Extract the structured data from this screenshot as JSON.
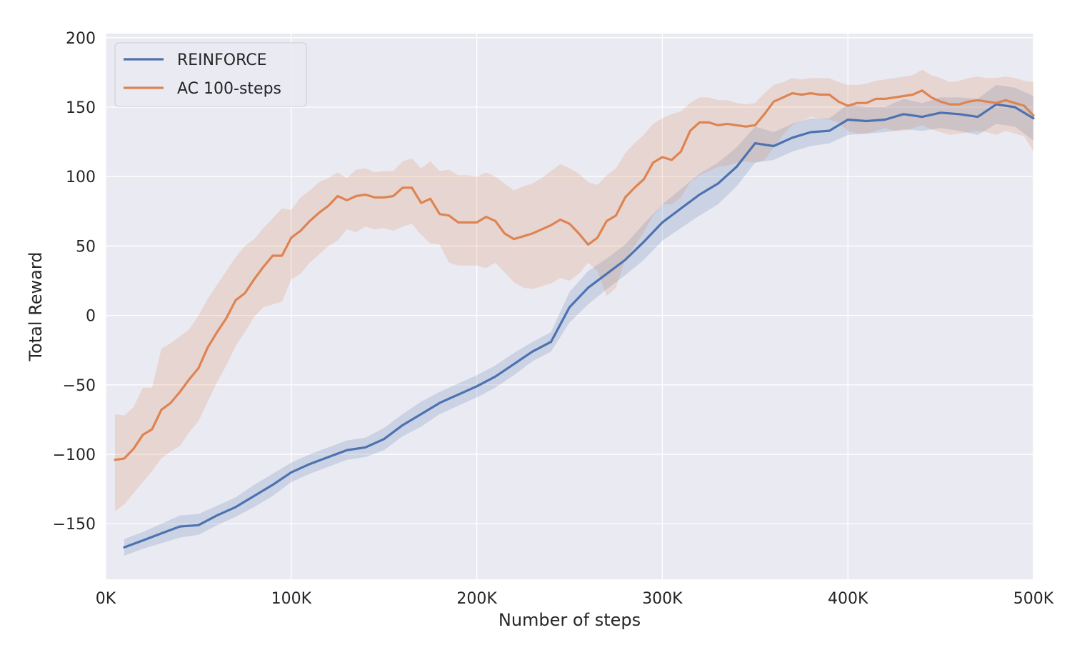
{
  "chart_data": {
    "type": "line",
    "title": "",
    "xlabel": "Number of steps",
    "ylabel": "Total Reward",
    "xlim": [
      0,
      500000
    ],
    "ylim": [
      -190,
      203
    ],
    "xticks": [
      0,
      100000,
      200000,
      300000,
      400000,
      500000
    ],
    "xtick_labels": [
      "0K",
      "100K",
      "200K",
      "300K",
      "400K",
      "500K"
    ],
    "yticks": [
      -150,
      -100,
      -50,
      0,
      50,
      100,
      150,
      200
    ],
    "ytick_labels": [
      "−150",
      "−100",
      "−50",
      "0",
      "50",
      "100",
      "150",
      "200"
    ],
    "grid": true,
    "legend_position": "top-left",
    "background_color": "#eaeaf2",
    "series": [
      {
        "name": "REINFORCE",
        "color": "#4c72b0",
        "x": [
          10000,
          20000,
          30000,
          40000,
          50000,
          60000,
          70000,
          80000,
          90000,
          100000,
          110000,
          120000,
          130000,
          140000,
          150000,
          160000,
          170000,
          180000,
          190000,
          200000,
          210000,
          220000,
          230000,
          240000,
          250000,
          260000,
          270000,
          280000,
          290000,
          300000,
          310000,
          320000,
          330000,
          340000,
          350000,
          360000,
          370000,
          380000,
          390000,
          400000,
          410000,
          420000,
          430000,
          440000,
          450000,
          460000,
          470000,
          480000,
          490000,
          500000
        ],
        "y": [
          -167,
          -162,
          -157,
          -152,
          -151,
          -144,
          -138,
          -130,
          -122,
          -113,
          -107,
          -102,
          -97,
          -95,
          -89,
          -79,
          -71,
          -63,
          -57,
          -51,
          -44,
          -35,
          -26,
          -19,
          6,
          20,
          30,
          40,
          53,
          67,
          77,
          87,
          95,
          107,
          124,
          122,
          128,
          132,
          133,
          141,
          140,
          141,
          145,
          143,
          146,
          145,
          143,
          152,
          150,
          142
        ],
        "y_lower": [
          -173,
          -168,
          -164,
          -160,
          -158,
          -151,
          -145,
          -138,
          -130,
          -120,
          -114,
          -109,
          -104,
          -102,
          -97,
          -87,
          -80,
          -71,
          -65,
          -59,
          -52,
          -43,
          -33,
          -26,
          -5,
          8,
          19,
          29,
          40,
          54,
          63,
          72,
          80,
          93,
          110,
          112,
          118,
          122,
          124,
          130,
          131,
          132,
          134,
          133,
          135,
          133,
          130,
          138,
          136,
          126
        ],
        "y_upper": [
          -161,
          -156,
          -150,
          -144,
          -143,
          -137,
          -131,
          -122,
          -114,
          -106,
          -100,
          -95,
          -90,
          -88,
          -81,
          -71,
          -62,
          -55,
          -49,
          -43,
          -36,
          -27,
          -19,
          -12,
          17,
          32,
          41,
          51,
          66,
          80,
          91,
          102,
          110,
          121,
          136,
          132,
          138,
          142,
          142,
          152,
          150,
          150,
          156,
          153,
          157,
          157,
          156,
          166,
          164,
          158
        ]
      },
      {
        "name": "AC 100-steps",
        "color": "#dd8452",
        "x": [
          5000,
          10000,
          15000,
          20000,
          25000,
          30000,
          35000,
          40000,
          45000,
          50000,
          55000,
          60000,
          65000,
          70000,
          75000,
          80000,
          85000,
          90000,
          95000,
          100000,
          105000,
          110000,
          115000,
          120000,
          125000,
          130000,
          135000,
          140000,
          145000,
          150000,
          155000,
          160000,
          165000,
          170000,
          175000,
          180000,
          185000,
          190000,
          195000,
          200000,
          205000,
          210000,
          215000,
          220000,
          225000,
          230000,
          235000,
          240000,
          245000,
          250000,
          255000,
          260000,
          265000,
          270000,
          275000,
          280000,
          285000,
          290000,
          295000,
          300000,
          305000,
          310000,
          315000,
          320000,
          325000,
          330000,
          335000,
          340000,
          345000,
          350000,
          355000,
          360000,
          365000,
          370000,
          375000,
          380000,
          385000,
          390000,
          395000,
          400000,
          405000,
          410000,
          415000,
          420000,
          425000,
          430000,
          435000,
          440000,
          445000,
          450000,
          455000,
          460000,
          465000,
          470000,
          475000,
          480000,
          485000,
          490000,
          495000,
          500000
        ],
        "y": [
          -104,
          -103,
          -96,
          -86,
          -82,
          -68,
          -63,
          -55,
          -46,
          -38,
          -23,
          -12,
          -2,
          11,
          16,
          26,
          35,
          43,
          43,
          56,
          61,
          68,
          74,
          79,
          86,
          83,
          86,
          87,
          85,
          85,
          86,
          92,
          92,
          81,
          84,
          73,
          72,
          67,
          67,
          67,
          71,
          68,
          59,
          55,
          57,
          59,
          62,
          65,
          69,
          66,
          59,
          51,
          56,
          68,
          72,
          85,
          92,
          98,
          110,
          114,
          112,
          118,
          133,
          139,
          139,
          137,
          138,
          137,
          136,
          137,
          145,
          154,
          157,
          160,
          159,
          160,
          159,
          159,
          154,
          151,
          153,
          153,
          156,
          156,
          157,
          158,
          159,
          162,
          157,
          154,
          152,
          152,
          154,
          155,
          154,
          153,
          155,
          153,
          151,
          144
        ],
        "y_lower": [
          -141,
          -136,
          -128,
          -120,
          -112,
          -103,
          -98,
          -94,
          -84,
          -76,
          -62,
          -48,
          -36,
          -22,
          -12,
          -1,
          6,
          8,
          10,
          26,
          30,
          38,
          44,
          50,
          54,
          62,
          60,
          64,
          62,
          63,
          61,
          64,
          66,
          58,
          52,
          51,
          38,
          36,
          36,
          36,
          34,
          38,
          31,
          24,
          20,
          19,
          21,
          23,
          27,
          25,
          30,
          38,
          32,
          14,
          20,
          40,
          50,
          60,
          72,
          80,
          80,
          85,
          96,
          101,
          104,
          107,
          108,
          110,
          111,
          110,
          112,
          121,
          130,
          137,
          140,
          143,
          142,
          141,
          139,
          133,
          131,
          131,
          133,
          135,
          133,
          133,
          135,
          137,
          134,
          132,
          130,
          131,
          132,
          133,
          132,
          130,
          133,
          131,
          129,
          118
        ],
        "y_upper": [
          -71,
          -72,
          -66,
          -52,
          -52,
          -24,
          -20,
          -15,
          -10,
          0,
          12,
          22,
          32,
          42,
          50,
          55,
          63,
          70,
          77,
          76,
          85,
          90,
          96,
          99,
          103,
          99,
          105,
          106,
          103,
          104,
          104,
          111,
          113,
          106,
          111,
          104,
          105,
          101,
          101,
          100,
          103,
          100,
          95,
          90,
          93,
          95,
          99,
          104,
          109,
          106,
          102,
          96,
          94,
          101,
          106,
          117,
          124,
          130,
          138,
          142,
          145,
          147,
          153,
          157,
          157,
          155,
          155,
          153,
          152,
          153,
          160,
          166,
          168,
          171,
          170,
          171,
          171,
          171,
          168,
          166,
          166,
          167,
          169,
          170,
          171,
          172,
          173,
          177,
          173,
          171,
          168,
          169,
          171,
          172,
          171,
          171,
          172,
          171,
          169,
          168
        ]
      }
    ]
  }
}
